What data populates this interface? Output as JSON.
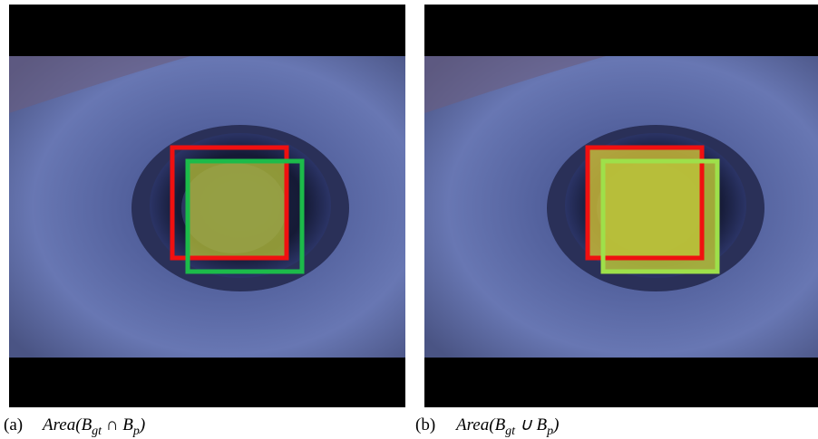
{
  "panels": [
    {
      "label": "(a)",
      "formula": [
        {
          "t": "Area("
        },
        {
          "t": "B"
        },
        {
          "t": "gt",
          "sub": true
        },
        {
          "t": " ∩ "
        },
        {
          "t": "B"
        },
        {
          "t": "p",
          "sub": true
        },
        {
          "t": ")"
        }
      ]
    },
    {
      "label": "(b)",
      "formula": [
        {
          "t": "Area("
        },
        {
          "t": "B"
        },
        {
          "t": "gt",
          "sub": true
        },
        {
          "t": " ∪ "
        },
        {
          "t": "B"
        },
        {
          "t": "p",
          "sub": true
        },
        {
          "t": ")"
        }
      ]
    }
  ]
}
